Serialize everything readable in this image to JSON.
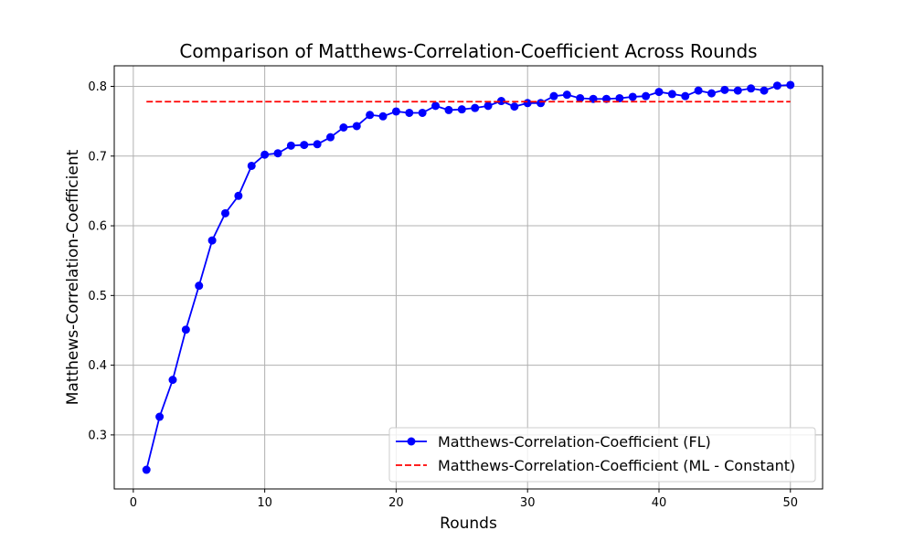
{
  "chart_data": {
    "type": "line",
    "title": "Comparison of Matthews-Correlation-Coefficient Across Rounds",
    "xlabel": "Rounds",
    "ylabel": "Matthews-Correlation-Coefficient",
    "xlim": [
      -1.45,
      52.45
    ],
    "ylim": [
      0.2225,
      0.8295
    ],
    "x_ticks": [
      0,
      10,
      20,
      30,
      40,
      50
    ],
    "x_tick_labels": [
      "0",
      "10",
      "20",
      "30",
      "40",
      "50"
    ],
    "y_ticks": [
      0.3,
      0.4,
      0.5,
      0.6,
      0.7,
      0.8
    ],
    "y_tick_labels": [
      "0.3",
      "0.4",
      "0.5",
      "0.6",
      "0.7",
      "0.8"
    ],
    "grid": true,
    "legend_position": "lower-right",
    "x": [
      1,
      2,
      3,
      4,
      5,
      6,
      7,
      8,
      9,
      10,
      11,
      12,
      13,
      14,
      15,
      16,
      17,
      18,
      19,
      20,
      21,
      22,
      23,
      24,
      25,
      26,
      27,
      28,
      29,
      30,
      31,
      32,
      33,
      34,
      35,
      36,
      37,
      38,
      39,
      40,
      41,
      42,
      43,
      44,
      45,
      46,
      47,
      48,
      49,
      50
    ],
    "series": [
      {
        "name": "Matthews-Correlation-Coefficient (FL)",
        "color": "#0000ff",
        "style": "solid",
        "marker": "circle",
        "values": [
          0.25,
          0.326,
          0.379,
          0.451,
          0.514,
          0.579,
          0.618,
          0.643,
          0.686,
          0.702,
          0.704,
          0.715,
          0.716,
          0.717,
          0.727,
          0.741,
          0.743,
          0.759,
          0.757,
          0.764,
          0.762,
          0.762,
          0.772,
          0.766,
          0.767,
          0.769,
          0.772,
          0.779,
          0.771,
          0.776,
          0.776,
          0.786,
          0.788,
          0.783,
          0.782,
          0.782,
          0.783,
          0.785,
          0.786,
          0.792,
          0.789,
          0.786,
          0.794,
          0.79,
          0.795,
          0.794,
          0.797,
          0.794,
          0.801,
          0.802
        ]
      },
      {
        "name": "Matthews-Correlation-Coefficient (ML - Constant)",
        "color": "#ff0000",
        "style": "dashed",
        "marker": "none",
        "values": [
          0.778,
          0.778,
          0.778,
          0.778,
          0.778,
          0.778,
          0.778,
          0.778,
          0.778,
          0.778,
          0.778,
          0.778,
          0.778,
          0.778,
          0.778,
          0.778,
          0.778,
          0.778,
          0.778,
          0.778,
          0.778,
          0.778,
          0.778,
          0.778,
          0.778,
          0.778,
          0.778,
          0.778,
          0.778,
          0.778,
          0.778,
          0.778,
          0.778,
          0.778,
          0.778,
          0.778,
          0.778,
          0.778,
          0.778,
          0.778,
          0.778,
          0.778,
          0.778,
          0.778,
          0.778,
          0.778,
          0.778,
          0.778,
          0.778,
          0.778
        ]
      }
    ]
  }
}
